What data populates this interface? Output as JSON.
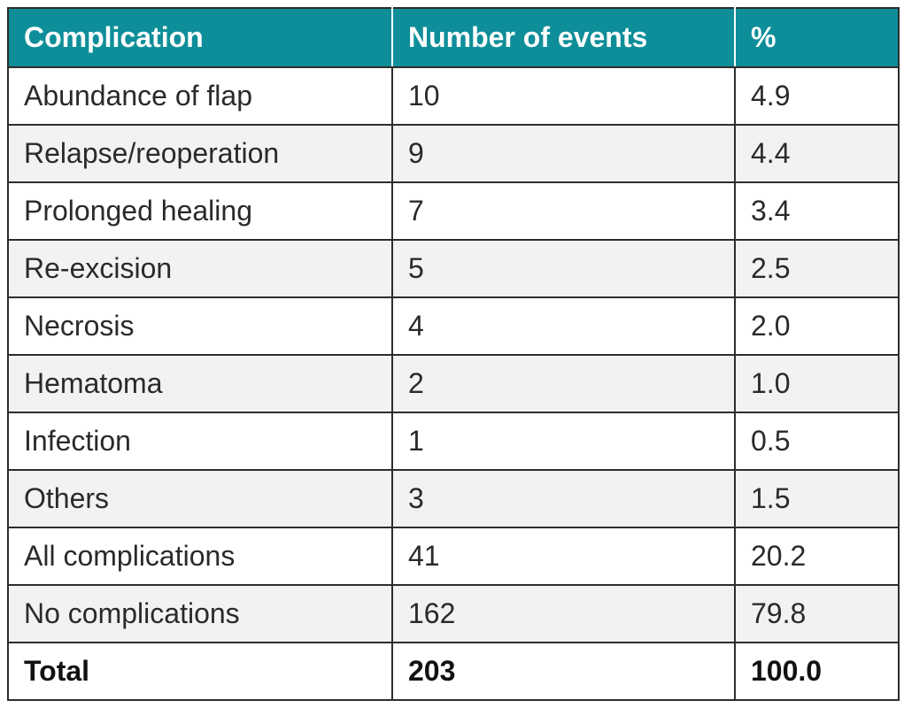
{
  "table": {
    "headers": [
      "Complication",
      "Number of events",
      "%"
    ],
    "rows": [
      [
        "Abundance of flap",
        "10",
        "4.9"
      ],
      [
        "Relapse/reoperation",
        "9",
        "4.4"
      ],
      [
        "Prolonged healing",
        "7",
        "3.4"
      ],
      [
        "Re-excision",
        "5",
        "2.5"
      ],
      [
        "Necrosis",
        "4",
        "2.0"
      ],
      [
        "Hematoma",
        "2",
        "1.0"
      ],
      [
        "Infection",
        "1",
        "0.5"
      ],
      [
        "Others",
        "3",
        "1.5"
      ],
      [
        "All complications",
        "41",
        "20.2"
      ],
      [
        "No complications",
        "162",
        "79.8"
      ],
      [
        "Total",
        "203",
        "100.0"
      ]
    ],
    "colors": {
      "header_bg": "#0e8e99",
      "header_text": "#ffffff",
      "alt_row_bg": "#f1f2f3",
      "border": "#2d2d2d"
    }
  }
}
